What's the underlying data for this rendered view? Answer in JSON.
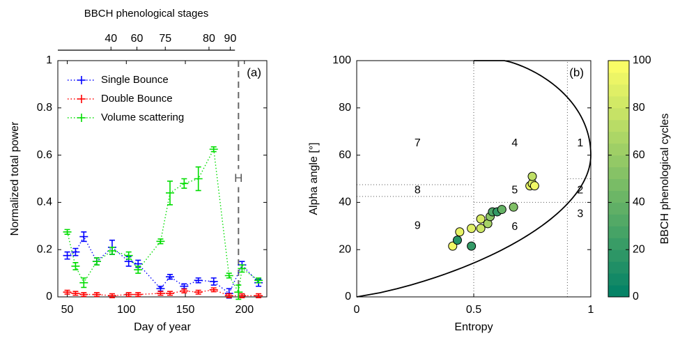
{
  "chart_data": [
    {
      "type": "line",
      "x2label": "BBCH phenological stages",
      "xlabel": "Day of year",
      "ylabel": "Normalized total power",
      "panel_label": "(a)",
      "xlim": [
        42,
        219
      ],
      "xticks": [
        50,
        100,
        150,
        200
      ],
      "ylim": [
        0,
        1
      ],
      "yticks": [
        0,
        0.2,
        0.4,
        0.6,
        0.8,
        1
      ],
      "x2lim": [
        42,
        192
      ],
      "x2ticks": [
        {
          "value": 87,
          "label": "40"
        },
        {
          "value": 109,
          "label": "60"
        },
        {
          "value": 133,
          "label": "75"
        },
        {
          "value": 170,
          "label": "80"
        },
        {
          "value": 188,
          "label": "90"
        }
      ],
      "legend": "upper left",
      "vlines": [
        {
          "x": 195,
          "label": "H"
        }
      ],
      "series": [
        {
          "name": "Single Bounce",
          "color": "#0000ff",
          "x": [
            50,
            57,
            64,
            75,
            88,
            102,
            110,
            129,
            137,
            149,
            161,
            174,
            187,
            198,
            212
          ],
          "values": [
            0.175,
            0.19,
            0.255,
            0.15,
            0.21,
            0.15,
            0.14,
            0.035,
            0.085,
            0.045,
            0.07,
            0.065,
            0.015,
            0.135,
            0.06
          ],
          "errors": [
            0.015,
            0.015,
            0.02,
            0.015,
            0.03,
            0.02,
            0.015,
            0.01,
            0.01,
            0.01,
            0.01,
            0.015,
            0.02,
            0.015,
            0.015
          ]
        },
        {
          "name": "Double Bounce",
          "color": "#ff0000",
          "x": [
            50,
            57,
            64,
            75,
            88,
            102,
            110,
            129,
            137,
            149,
            161,
            174,
            187,
            198,
            212
          ],
          "values": [
            0.02,
            0.015,
            0.01,
            0.01,
            0.005,
            0.01,
            0.01,
            0.015,
            0.015,
            0.025,
            0.02,
            0.03,
            0.005,
            0.005,
            0.005
          ],
          "errors": [
            0.008,
            0.008,
            0.008,
            0.008,
            0.008,
            0.008,
            0.008,
            0.008,
            0.008,
            0.008,
            0.008,
            0.008,
            0.008,
            0.008,
            0.008
          ]
        },
        {
          "name": "Volume scattering",
          "color": "#00dd00",
          "x": [
            50,
            57,
            64,
            75,
            88,
            102,
            110,
            129,
            137,
            149,
            161,
            174,
            187,
            195,
            198,
            212
          ],
          "values": [
            0.275,
            0.13,
            0.06,
            0.15,
            0.195,
            0.175,
            0.115,
            0.235,
            0.44,
            0.48,
            0.5,
            0.625,
            0.09,
            0.02,
            0.12,
            0.07
          ],
          "errors": [
            0.01,
            0.015,
            0.02,
            0.015,
            0.015,
            0.015,
            0.015,
            0.01,
            0.05,
            0.02,
            0.05,
            0.01,
            0.01,
            0.03,
            0.015,
            0.01
          ]
        }
      ]
    },
    {
      "type": "scatter",
      "xlabel": "Entropy",
      "ylabel": "Alpha angle [°]",
      "panel_label": "(b)",
      "xlim": [
        0,
        1
      ],
      "xticks": [
        0,
        0.5,
        1
      ],
      "ylim": [
        0,
        100
      ],
      "yticks": [
        0,
        20,
        40,
        60,
        80,
        100
      ],
      "zone_labels": [
        "1",
        "2",
        "3",
        "4",
        "5",
        "6",
        "7",
        "8",
        "9"
      ],
      "x": [
        0.41,
        0.44,
        0.43,
        0.49,
        0.49,
        0.53,
        0.53,
        0.56,
        0.57,
        0.58,
        0.6,
        0.62,
        0.67,
        0.74,
        0.75,
        0.75,
        0.76
      ],
      "values": [
        21.5,
        27.5,
        24,
        21.5,
        29,
        33,
        29,
        31,
        34,
        36,
        36,
        37,
        38,
        47,
        48,
        51,
        47
      ],
      "c": [
        95,
        90,
        15,
        20,
        88,
        85,
        80,
        65,
        55,
        30,
        20,
        40,
        50,
        90,
        85,
        75,
        95
      ],
      "colormap": "summer",
      "clim": [
        0,
        100
      ],
      "cticks": [
        0,
        20,
        40,
        60,
        80,
        100
      ],
      "clabel": "BBCH phenological cycles"
    }
  ]
}
